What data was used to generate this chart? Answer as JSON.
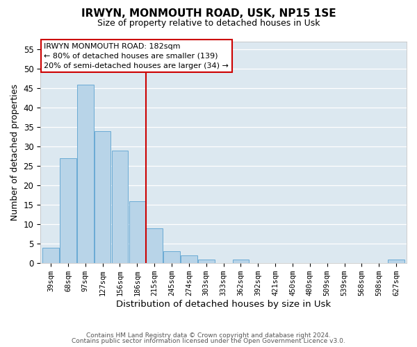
{
  "title": "IRWYN, MONMOUTH ROAD, USK, NP15 1SE",
  "subtitle": "Size of property relative to detached houses in Usk",
  "xlabel": "Distribution of detached houses by size in Usk",
  "ylabel": "Number of detached properties",
  "bar_color": "#b8d4e8",
  "bar_edge_color": "#6aaad4",
  "categories": [
    "39sqm",
    "68sqm",
    "97sqm",
    "127sqm",
    "156sqm",
    "186sqm",
    "215sqm",
    "245sqm",
    "274sqm",
    "303sqm",
    "333sqm",
    "362sqm",
    "392sqm",
    "421sqm",
    "450sqm",
    "480sqm",
    "509sqm",
    "539sqm",
    "568sqm",
    "598sqm",
    "627sqm"
  ],
  "values": [
    4,
    27,
    46,
    34,
    29,
    16,
    9,
    3,
    2,
    1,
    0,
    1,
    0,
    0,
    0,
    0,
    0,
    0,
    0,
    0,
    1
  ],
  "vline_x": 5.5,
  "vline_color": "#cc0000",
  "ylim": [
    0,
    57
  ],
  "yticks": [
    0,
    5,
    10,
    15,
    20,
    25,
    30,
    35,
    40,
    45,
    50,
    55
  ],
  "annotation_title": "IRWYN MONMOUTH ROAD: 182sqm",
  "annotation_line1": "← 80% of detached houses are smaller (139)",
  "annotation_line2": "20% of semi-detached houses are larger (34) →",
  "footer1": "Contains HM Land Registry data © Crown copyright and database right 2024.",
  "footer2": "Contains public sector information licensed under the Open Government Licence v3.0."
}
